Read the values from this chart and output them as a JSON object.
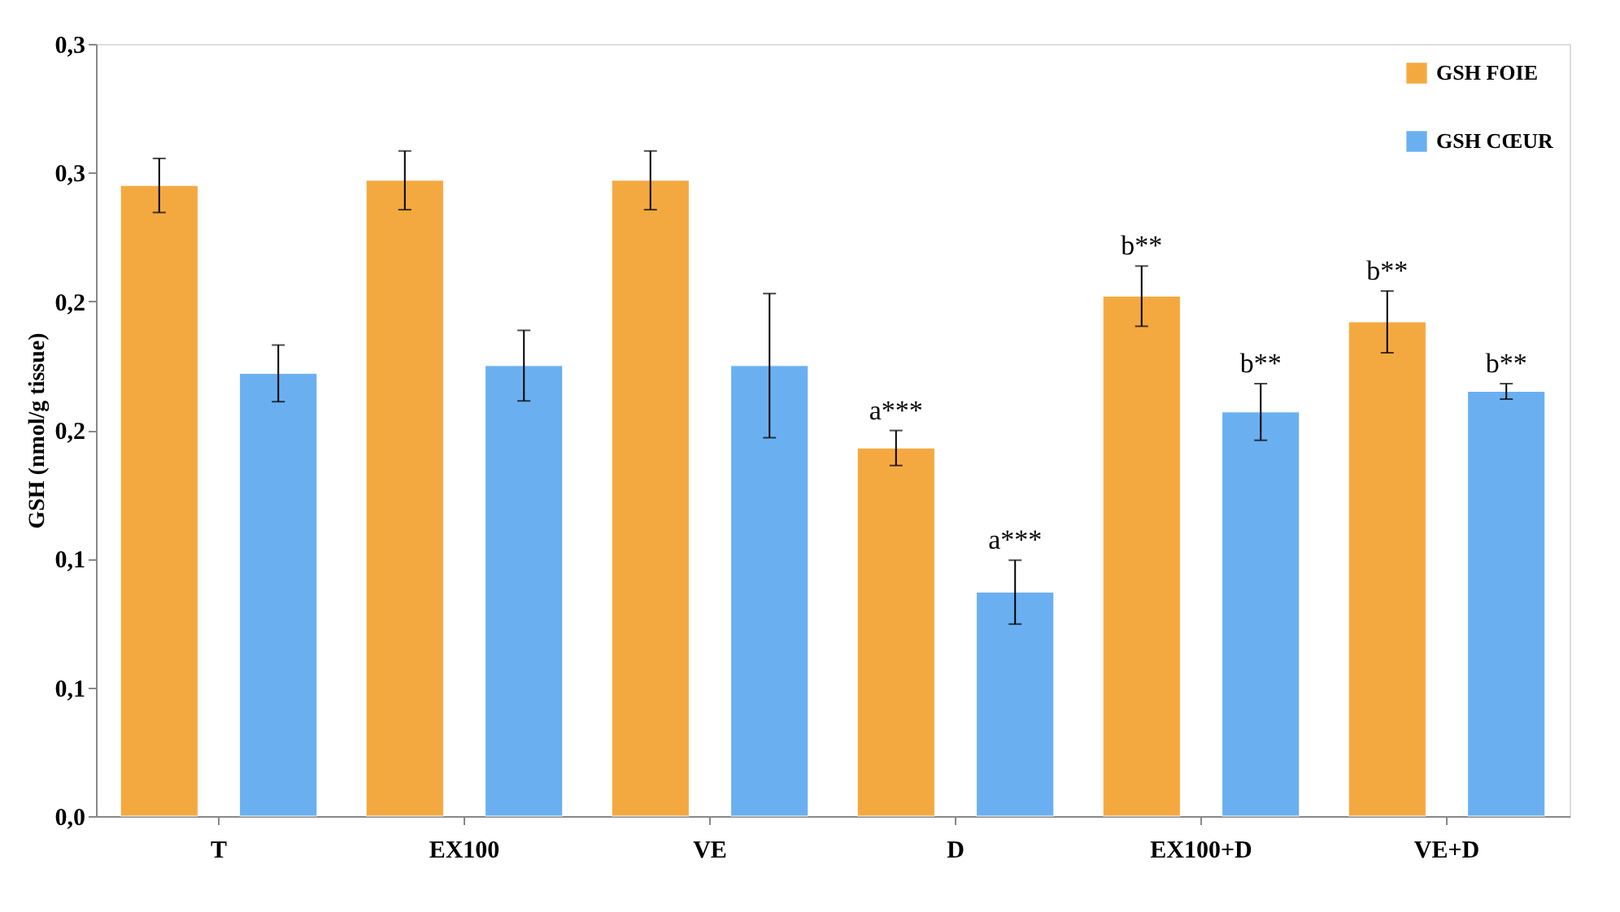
{
  "chart_data": {
    "type": "bar",
    "ylabel": "GSH (nmol/g tissue)",
    "categories": [
      "T",
      "EX100",
      "VE",
      "D",
      "EX100+D",
      "VE+D"
    ],
    "series": [
      {
        "name": "GSH FOIE",
        "color": "#f4a940",
        "values": [
          0.245,
          0.247,
          0.247,
          0.143,
          0.202,
          0.192
        ],
        "errors": [
          0.0105,
          0.0114,
          0.0114,
          0.0068,
          0.0117,
          0.012
        ],
        "value_labels": [
          null,
          null,
          null,
          "a***",
          "b**",
          "b**"
        ]
      },
      {
        "name": "GSH CŒUR",
        "color": "#6ab0f0",
        "values": [
          0.172,
          0.175,
          0.175,
          0.087,
          0.157,
          0.165
        ],
        "errors": [
          0.011,
          0.0137,
          0.028,
          0.0124,
          0.011,
          0.003
        ],
        "value_labels": [
          null,
          null,
          null,
          "a***",
          "b**",
          "b**"
        ]
      }
    ],
    "ylim": [
      0,
      0.3
    ],
    "yticks": [
      {
        "value": 0,
        "label": "0,0"
      },
      {
        "value": 0.05,
        "label": "0,1"
      },
      {
        "value": 0.1,
        "label": "0,1"
      },
      {
        "value": 0.15,
        "label": "0,2"
      },
      {
        "value": 0.2,
        "label": "0,2"
      },
      {
        "value": 0.25,
        "label": "0,3"
      },
      {
        "value": 0.3,
        "label": "0,3"
      }
    ],
    "legend": "top right",
    "grid": false
  }
}
